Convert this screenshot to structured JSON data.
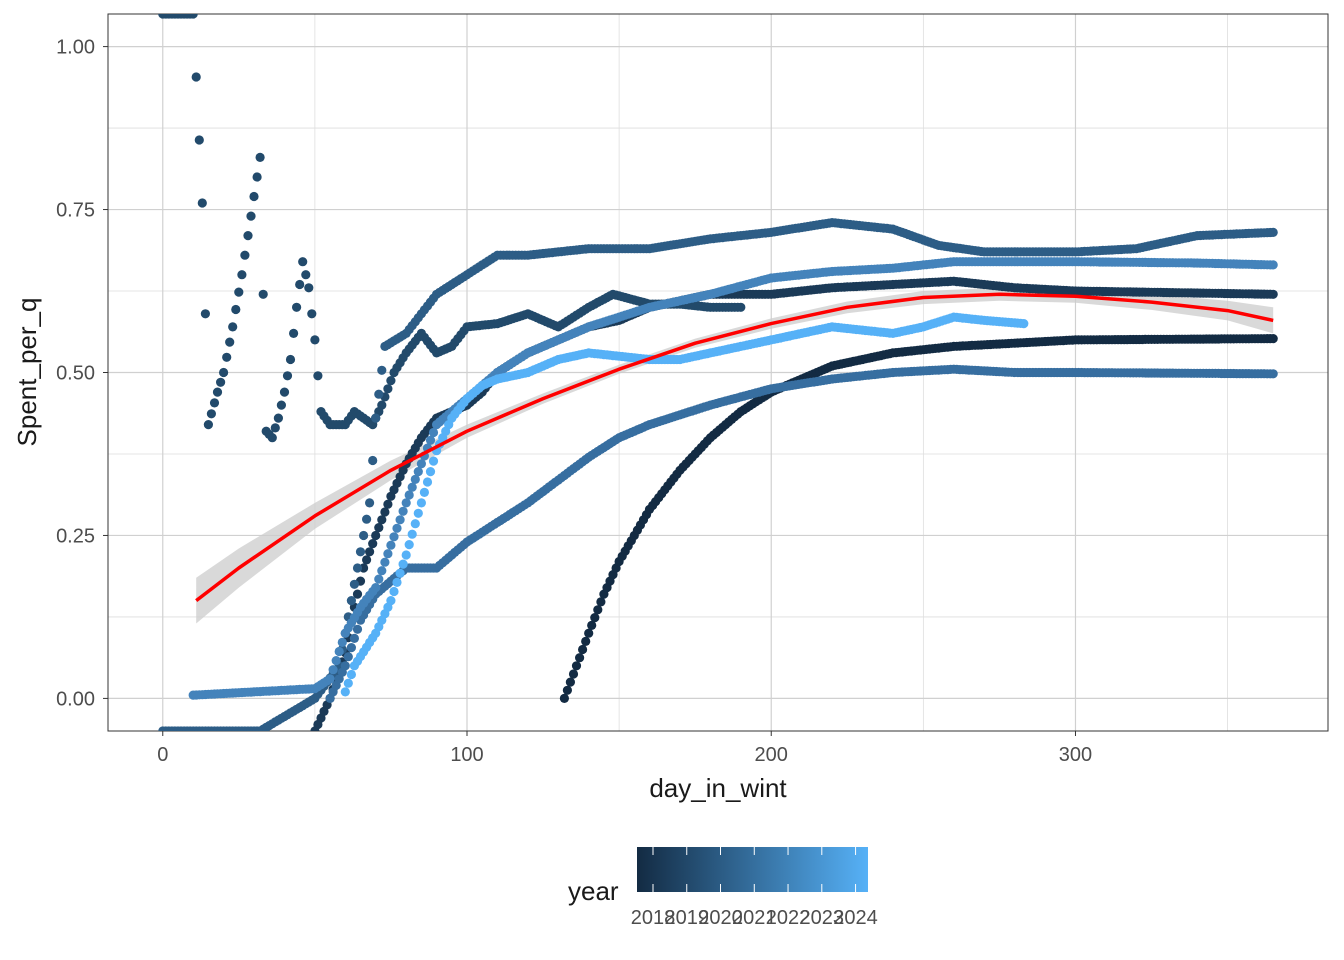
{
  "chart_data": {
    "type": "scatter",
    "xlabel": "day_in_wint",
    "ylabel": "Spent_per_q",
    "xlim": [
      -18,
      383
    ],
    "ylim": [
      -0.05,
      1.05
    ],
    "x_ticks": [
      0,
      100,
      200,
      300
    ],
    "x_tick_labels": [
      "0",
      "100",
      "200",
      "300"
    ],
    "y_ticks": [
      0.0,
      0.25,
      0.5,
      0.75,
      1.0
    ],
    "y_tick_labels": [
      "0.00",
      "0.25",
      "0.50",
      "0.75",
      "1.00"
    ],
    "grid": true,
    "legend": {
      "title": "year",
      "position": "bottom",
      "type": "colorbar",
      "labels": [
        "2018",
        "2019",
        "2020",
        "2021",
        "2022",
        "2023",
        "2024"
      ],
      "color_low": "#132B43",
      "color_high": "#56B1F7"
    },
    "series": [
      {
        "year": 2018,
        "color": "#132B43",
        "points": [
          [
            132,
            0.0
          ],
          [
            136,
            0.05
          ],
          [
            140,
            0.1
          ],
          [
            145,
            0.16
          ],
          [
            150,
            0.21
          ],
          [
            160,
            0.29
          ],
          [
            170,
            0.35
          ],
          [
            180,
            0.4
          ],
          [
            190,
            0.44
          ],
          [
            200,
            0.47
          ],
          [
            210,
            0.49
          ],
          [
            220,
            0.51
          ],
          [
            240,
            0.53
          ],
          [
            260,
            0.54
          ],
          [
            300,
            0.55
          ],
          [
            365,
            0.552
          ]
        ]
      },
      {
        "year": 2019,
        "color": "#1B3A57",
        "points": [
          [
            50,
            -0.05
          ],
          [
            55,
            0.0
          ],
          [
            60,
            0.07
          ],
          [
            63,
            0.14
          ],
          [
            66,
            0.2
          ],
          [
            70,
            0.25
          ],
          [
            75,
            0.31
          ],
          [
            80,
            0.36
          ],
          [
            85,
            0.4
          ],
          [
            90,
            0.43
          ],
          [
            95,
            0.44
          ],
          [
            100,
            0.45
          ],
          [
            105,
            0.47
          ],
          [
            110,
            0.5
          ],
          [
            120,
            0.53
          ],
          [
            130,
            0.55
          ],
          [
            140,
            0.57
          ],
          [
            150,
            0.58
          ],
          [
            160,
            0.6
          ],
          [
            170,
            0.61
          ],
          [
            180,
            0.62
          ],
          [
            200,
            0.62
          ],
          [
            220,
            0.63
          ],
          [
            240,
            0.635
          ],
          [
            260,
            0.64
          ],
          [
            280,
            0.63
          ],
          [
            300,
            0.625
          ],
          [
            365,
            0.62
          ]
        ]
      },
      {
        "year": 2020,
        "color": "#224A6B",
        "points": [
          [
            0,
            1.05
          ],
          [
            10,
            1.05
          ],
          [
            13,
            0.76
          ],
          [
            15,
            0.42
          ],
          [
            18,
            0.47
          ],
          [
            20,
            0.5
          ],
          [
            23,
            0.57
          ],
          [
            26,
            0.65
          ],
          [
            29,
            0.74
          ],
          [
            32,
            0.83
          ],
          [
            34,
            0.41
          ],
          [
            36,
            0.4
          ],
          [
            38,
            0.43
          ],
          [
            40,
            0.47
          ],
          [
            42,
            0.52
          ],
          [
            44,
            0.6
          ],
          [
            46,
            0.67
          ],
          [
            48,
            0.63
          ],
          [
            50,
            0.55
          ],
          [
            52,
            0.44
          ],
          [
            55,
            0.42
          ],
          [
            60,
            0.42
          ],
          [
            63,
            0.44
          ],
          [
            66,
            0.43
          ],
          [
            69,
            0.42
          ],
          [
            72,
            0.45
          ],
          [
            76,
            0.5
          ],
          [
            80,
            0.53
          ],
          [
            85,
            0.56
          ],
          [
            90,
            0.53
          ],
          [
            95,
            0.54
          ],
          [
            100,
            0.57
          ],
          [
            110,
            0.575
          ],
          [
            120,
            0.59
          ],
          [
            130,
            0.57
          ],
          [
            140,
            0.6
          ],
          [
            148,
            0.62
          ],
          [
            160,
            0.605
          ],
          [
            170,
            0.605
          ],
          [
            180,
            0.6
          ],
          [
            190,
            0.6
          ]
        ]
      },
      {
        "year": 2021,
        "color": "#2D5D86",
        "points": [
          [
            0,
            -0.05
          ],
          [
            32,
            -0.05
          ],
          [
            50,
            0.0
          ],
          [
            58,
            0.05
          ],
          [
            64,
            0.2
          ],
          [
            68,
            0.3
          ],
          [
            70,
            0.43
          ],
          [
            73,
            0.54
          ],
          [
            80,
            0.56
          ],
          [
            90,
            0.62
          ],
          [
            100,
            0.65
          ],
          [
            110,
            0.68
          ],
          [
            120,
            0.68
          ],
          [
            140,
            0.69
          ],
          [
            160,
            0.69
          ],
          [
            180,
            0.705
          ],
          [
            200,
            0.715
          ],
          [
            220,
            0.73
          ],
          [
            240,
            0.72
          ],
          [
            255,
            0.695
          ],
          [
            270,
            0.685
          ],
          [
            300,
            0.685
          ],
          [
            320,
            0.69
          ],
          [
            340,
            0.71
          ],
          [
            365,
            0.715
          ]
        ]
      },
      {
        "year": 2022,
        "color": "#376EA0",
        "points": [
          [
            55,
            0.0
          ],
          [
            60,
            0.05
          ],
          [
            65,
            0.12
          ],
          [
            70,
            0.16
          ],
          [
            80,
            0.2
          ],
          [
            90,
            0.2
          ],
          [
            100,
            0.24
          ],
          [
            120,
            0.3
          ],
          [
            140,
            0.37
          ],
          [
            150,
            0.4
          ],
          [
            160,
            0.42
          ],
          [
            180,
            0.45
          ],
          [
            200,
            0.475
          ],
          [
            220,
            0.49
          ],
          [
            240,
            0.5
          ],
          [
            260,
            0.505
          ],
          [
            280,
            0.5
          ],
          [
            300,
            0.5
          ],
          [
            365,
            0.498
          ]
        ]
      },
      {
        "year": 2023,
        "color": "#4483BB",
        "points": [
          [
            10,
            0.005
          ],
          [
            30,
            0.01
          ],
          [
            50,
            0.015
          ],
          [
            55,
            0.03
          ],
          [
            60,
            0.1
          ],
          [
            65,
            0.14
          ],
          [
            70,
            0.17
          ],
          [
            80,
            0.3
          ],
          [
            90,
            0.42
          ],
          [
            100,
            0.46
          ],
          [
            110,
            0.5
          ],
          [
            120,
            0.53
          ],
          [
            130,
            0.55
          ],
          [
            140,
            0.57
          ],
          [
            150,
            0.585
          ],
          [
            160,
            0.6
          ],
          [
            180,
            0.62
          ],
          [
            200,
            0.645
          ],
          [
            220,
            0.655
          ],
          [
            240,
            0.66
          ],
          [
            260,
            0.67
          ],
          [
            280,
            0.67
          ],
          [
            300,
            0.67
          ],
          [
            340,
            0.668
          ],
          [
            365,
            0.665
          ]
        ]
      },
      {
        "year": 2024,
        "color": "#56B1F7",
        "points": [
          [
            60,
            0.01
          ],
          [
            63,
            0.05
          ],
          [
            70,
            0.1
          ],
          [
            75,
            0.15
          ],
          [
            80,
            0.22
          ],
          [
            85,
            0.3
          ],
          [
            90,
            0.38
          ],
          [
            95,
            0.43
          ],
          [
            100,
            0.46
          ],
          [
            105,
            0.48
          ],
          [
            110,
            0.49
          ],
          [
            120,
            0.5
          ],
          [
            130,
            0.52
          ],
          [
            140,
            0.53
          ],
          [
            150,
            0.525
          ],
          [
            160,
            0.52
          ],
          [
            170,
            0.52
          ],
          [
            180,
            0.53
          ],
          [
            190,
            0.54
          ],
          [
            200,
            0.55
          ],
          [
            210,
            0.56
          ],
          [
            220,
            0.57
          ],
          [
            240,
            0.56
          ],
          [
            250,
            0.57
          ],
          [
            260,
            0.585
          ],
          [
            270,
            0.58
          ],
          [
            283,
            0.575
          ]
        ]
      }
    ],
    "smooth": {
      "color": "#FF0000",
      "band_color": "#CCCCCC",
      "points": [
        [
          11,
          0.15
        ],
        [
          25,
          0.2
        ],
        [
          50,
          0.28
        ],
        [
          75,
          0.35
        ],
        [
          100,
          0.41
        ],
        [
          125,
          0.46
        ],
        [
          150,
          0.505
        ],
        [
          175,
          0.545
        ],
        [
          200,
          0.575
        ],
        [
          225,
          0.6
        ],
        [
          250,
          0.615
        ],
        [
          275,
          0.62
        ],
        [
          300,
          0.617
        ],
        [
          325,
          0.608
        ],
        [
          350,
          0.595
        ],
        [
          365,
          0.58
        ]
      ],
      "band_halfwidth": [
        0.035,
        0.03,
        0.02,
        0.015,
        0.01,
        0.008,
        0.007,
        0.007,
        0.008,
        0.009,
        0.01,
        0.01,
        0.01,
        0.012,
        0.015,
        0.02
      ]
    }
  }
}
